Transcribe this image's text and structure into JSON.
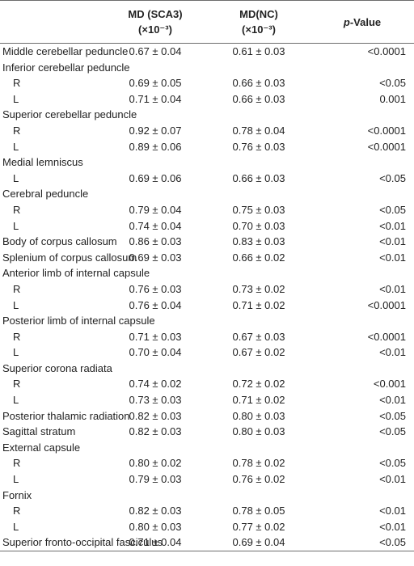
{
  "header": {
    "col1": "",
    "col2_line1": "MD (SCA3)",
    "col2_line2": "(×10⁻³)",
    "col3_line1": "MD(NC)",
    "col3_line2": "(×10⁻³)",
    "col4_italic": "p",
    "col4_rest": "-Value"
  },
  "rows": [
    {
      "label": "Middle cerebellar peduncle",
      "sca3": "0.67 ± 0.04",
      "nc": "0.61 ± 0.03",
      "p": "<0.0001",
      "sub": false
    },
    {
      "label": "Inferior cerebellar peduncle",
      "sca3": "",
      "nc": "",
      "p": "",
      "sub": false
    },
    {
      "label": "R",
      "sca3": "0.69 ± 0.05",
      "nc": "0.66 ± 0.03",
      "p": "<0.05",
      "sub": true
    },
    {
      "label": "L",
      "sca3": "0.71 ± 0.04",
      "nc": "0.66 ± 0.03",
      "p": "0.001",
      "sub": true
    },
    {
      "label": "Superior cerebellar peduncle",
      "sca3": "",
      "nc": "",
      "p": "",
      "sub": false
    },
    {
      "label": "R",
      "sca3": "0.92 ± 0.07",
      "nc": "0.78 ± 0.04",
      "p": "<0.0001",
      "sub": true
    },
    {
      "label": "L",
      "sca3": "0.89 ± 0.06",
      "nc": "0.76 ± 0.03",
      "p": "<0.0001",
      "sub": true
    },
    {
      "label": "Medial lemniscus",
      "sca3": "",
      "nc": "",
      "p": "",
      "sub": false
    },
    {
      "label": "L",
      "sca3": "0.69 ± 0.06",
      "nc": "0.66 ± 0.03",
      "p": "<0.05",
      "sub": true
    },
    {
      "label": "Cerebral peduncle",
      "sca3": "",
      "nc": "",
      "p": "",
      "sub": false
    },
    {
      "label": "R",
      "sca3": "0.79 ± 0.04",
      "nc": "0.75 ± 0.03",
      "p": "<0.05",
      "sub": true
    },
    {
      "label": "L",
      "sca3": "0.74 ± 0.04",
      "nc": "0.70 ± 0.03",
      "p": "<0.01",
      "sub": true
    },
    {
      "label": "Body of corpus callosum",
      "sca3": "0.86 ± 0.03",
      "nc": "0.83 ± 0.03",
      "p": "<0.01",
      "sub": false
    },
    {
      "label": "Splenium of corpus callosum",
      "sca3": "0.69 ± 0.03",
      "nc": "0.66 ± 0.02",
      "p": "<0.01",
      "sub": false
    },
    {
      "label": "Anterior limb of internal capsule",
      "sca3": "",
      "nc": "",
      "p": "",
      "sub": false
    },
    {
      "label": "R",
      "sca3": "0.76 ± 0.03",
      "nc": "0.73 ± 0.02",
      "p": "<0.01",
      "sub": true
    },
    {
      "label": "L",
      "sca3": "0.76 ± 0.04",
      "nc": "0.71 ± 0.02",
      "p": "<0.0001",
      "sub": true
    },
    {
      "label": "Posterior limb of internal capsule",
      "sca3": "",
      "nc": "",
      "p": "",
      "sub": false
    },
    {
      "label": "R",
      "sca3": "0.71 ± 0.03",
      "nc": "0.67 ± 0.03",
      "p": "<0.0001",
      "sub": true
    },
    {
      "label": "L",
      "sca3": "0.70 ± 0.04",
      "nc": "0.67 ± 0.02",
      "p": "<0.01",
      "sub": true
    },
    {
      "label": "Superior corona radiata",
      "sca3": "",
      "nc": "",
      "p": "",
      "sub": false
    },
    {
      "label": "R",
      "sca3": "0.74 ± 0.02",
      "nc": "0.72 ± 0.02",
      "p": "<0.001",
      "sub": true
    },
    {
      "label": "L",
      "sca3": "0.73 ± 0.03",
      "nc": "0.71 ± 0.02",
      "p": "<0.01",
      "sub": true
    },
    {
      "label": "Posterior thalamic radiation",
      "sca3": "0.82 ± 0.03",
      "nc": "0.80 ± 0.03",
      "p": "<0.05",
      "sub": false
    },
    {
      "label": "Sagittal stratum",
      "sca3": "0.82 ± 0.03",
      "nc": "0.80 ± 0.03",
      "p": "<0.05",
      "sub": false
    },
    {
      "label": "External capsule",
      "sca3": "",
      "nc": "",
      "p": "",
      "sub": false
    },
    {
      "label": "R",
      "sca3": "0.80 ± 0.02",
      "nc": "0.78 ± 0.02",
      "p": "<0.05",
      "sub": true
    },
    {
      "label": "L",
      "sca3": "0.79 ± 0.03",
      "nc": "0.76 ± 0.02",
      "p": "<0.01",
      "sub": true
    },
    {
      "label": "Fornix",
      "sca3": "",
      "nc": "",
      "p": "",
      "sub": false
    },
    {
      "label": "R",
      "sca3": "0.82 ± 0.03",
      "nc": "0.78 ± 0.05",
      "p": "<0.01",
      "sub": true
    },
    {
      "label": "L",
      "sca3": "0.80 ± 0.03",
      "nc": "0.77 ± 0.02",
      "p": "<0.01",
      "sub": true
    },
    {
      "label": "Superior fronto-occipital fasciculus",
      "sca3": "0.71 ± 0.04",
      "nc": "0.69 ± 0.04",
      "p": "<0.05",
      "sub": false
    }
  ]
}
